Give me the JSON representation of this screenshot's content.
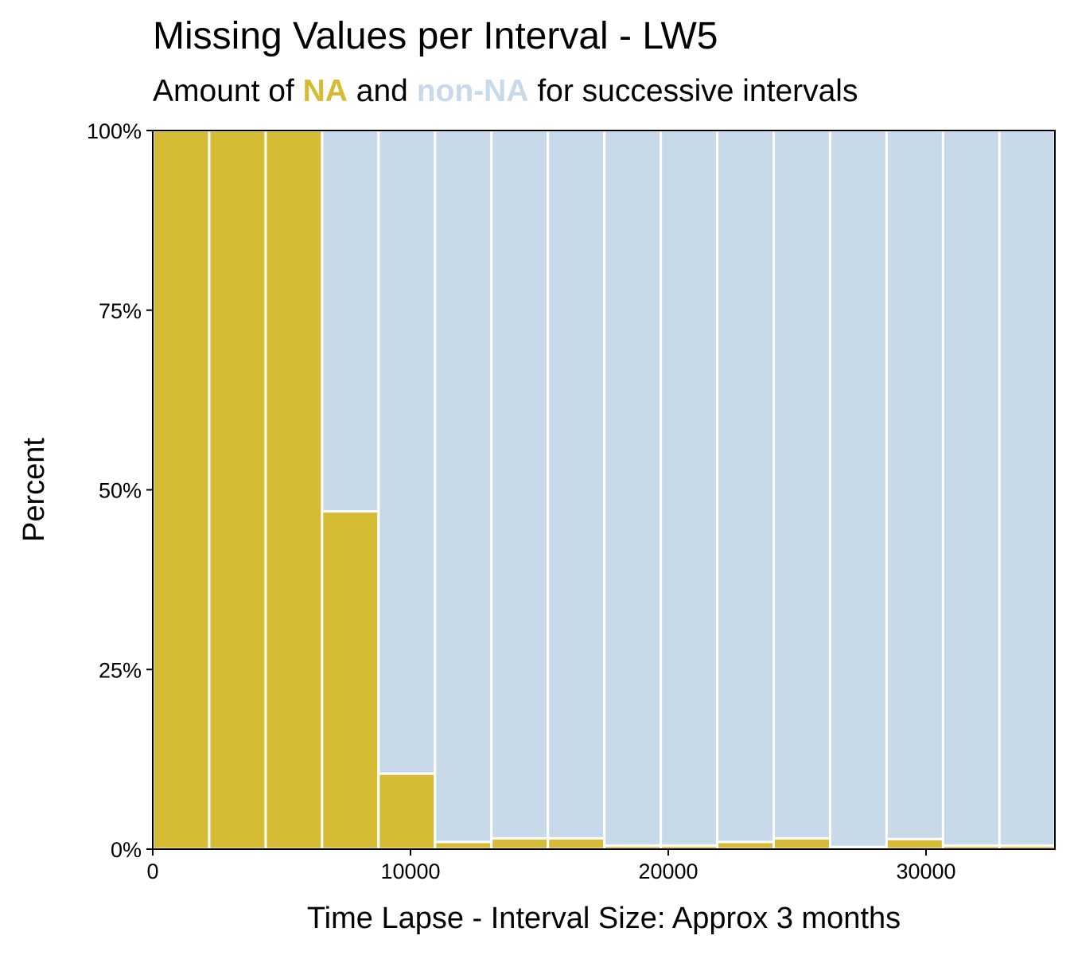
{
  "chart_data": {
    "type": "bar",
    "stacked": true,
    "title": "Missing Values per Interval - LW5",
    "subtitle": {
      "prefix": "Amount of ",
      "na_label": "NA",
      "middle": " and ",
      "nonna_label": "non-NA",
      "suffix": " for successive intervals"
    },
    "xlabel": "Time Lapse - Interval Size: Approx 3 months",
    "ylabel": "Percent",
    "xlim": [
      0,
      35000
    ],
    "ylim": [
      0,
      1
    ],
    "x_ticks": [
      {
        "value": 0,
        "label": "0"
      },
      {
        "value": 10000,
        "label": "10000"
      },
      {
        "value": 20000,
        "label": "20000"
      },
      {
        "value": 30000,
        "label": "30000"
      }
    ],
    "y_ticks": [
      {
        "value": 0,
        "label": "0%"
      },
      {
        "value": 0.25,
        "label": "25%"
      },
      {
        "value": 0.5,
        "label": "50%"
      },
      {
        "value": 0.75,
        "label": "75%"
      },
      {
        "value": 1,
        "label": "100%"
      }
    ],
    "bin_edges": [
      0,
      2190,
      4380,
      6570,
      8760,
      10950,
      13140,
      15330,
      17520,
      19710,
      21900,
      24090,
      26280,
      28470,
      30660,
      32850,
      35000
    ],
    "series": [
      {
        "name": "NA",
        "color": "#D6BC34",
        "values": [
          1.0,
          1.0,
          1.0,
          0.47,
          0.105,
          0.01,
          0.015,
          0.015,
          0.005,
          0.005,
          0.01,
          0.015,
          0.003,
          0.014,
          0.005,
          0.005
        ]
      },
      {
        "name": "non-NA",
        "color": "#C8DAE9",
        "values": [
          0.0,
          0.0,
          0.0,
          0.53,
          0.895,
          0.99,
          0.985,
          0.985,
          0.995,
          0.995,
          0.99,
          0.985,
          0.997,
          0.986,
          0.995,
          0.995
        ]
      }
    ],
    "grid": true,
    "legend": "none"
  }
}
